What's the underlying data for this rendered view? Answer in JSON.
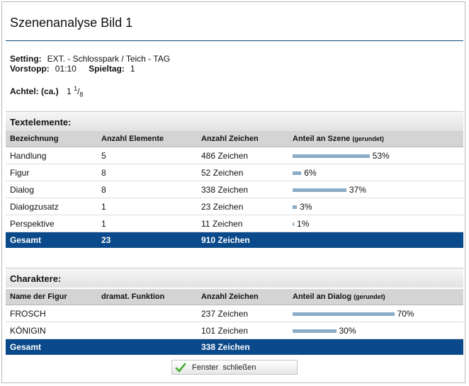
{
  "title": "Szenenanalyse Bild 1",
  "meta": {
    "setting_label": "Setting:",
    "setting_value": "EXT. -  Schlosspark / Teich -  TAG",
    "vorstopp_label": "Vorstopp:",
    "vorstopp_value": "01:10",
    "spieltag_label": "Spieltag:",
    "spieltag_value": "1",
    "achtel_label": "Achtel: (ca.)",
    "achtel_whole": "1",
    "achtel_num": "1",
    "achtel_den": "8"
  },
  "text_elements": {
    "heading": "Textelemente:",
    "columns": [
      "Bezeichnung",
      "Anzahl Elemente",
      "Anzahl Zeichen",
      "Anteil an Szene",
      "(gerundet)"
    ],
    "rows": [
      {
        "name": "Handlung",
        "count": "5",
        "chars": "486 Zeichen",
        "percent": 53,
        "percent_label": "53%"
      },
      {
        "name": "Figur",
        "count": "8",
        "chars": "52 Zeichen",
        "percent": 6,
        "percent_label": "6%"
      },
      {
        "name": "Dialog",
        "count": "8",
        "chars": "338 Zeichen",
        "percent": 37,
        "percent_label": "37%"
      },
      {
        "name": "Dialogzusatz",
        "count": "1",
        "chars": "23 Zeichen",
        "percent": 3,
        "percent_label": "3%"
      },
      {
        "name": "Perspektive",
        "count": "1",
        "chars": "11 Zeichen",
        "percent": 1,
        "percent_label": "1%"
      }
    ],
    "total": {
      "label": "Gesamt",
      "count": "23",
      "chars": "910 Zeichen"
    }
  },
  "characters": {
    "heading": "Charaktere:",
    "columns": [
      "Name der Figur",
      "dramat. Funktion",
      "Anzahl Zeichen",
      "Anteil an Dialog",
      "(gerundet)"
    ],
    "rows": [
      {
        "name": "FROSCH",
        "function": "",
        "chars": "237 Zeichen",
        "percent": 70,
        "percent_label": "70%"
      },
      {
        "name": "KÖNIGIN",
        "function": "",
        "chars": "101 Zeichen",
        "percent": 30,
        "percent_label": "30%"
      }
    ],
    "total": {
      "label": "Gesamt",
      "chars": "338 Zeichen"
    }
  },
  "close_button": {
    "label": "Fenster  schließen",
    "icon": "check-icon"
  },
  "colors": {
    "accent": "#0b4a8a",
    "bar": "#8aabc6",
    "header": "#d4d4d4"
  }
}
